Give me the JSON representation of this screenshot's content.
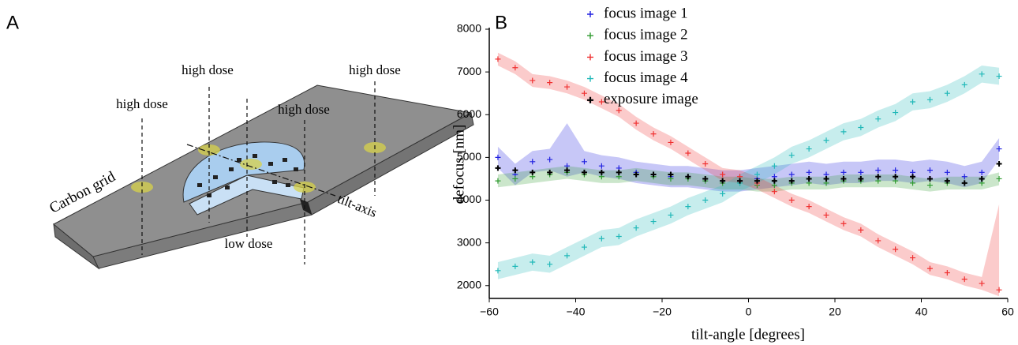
{
  "panels": {
    "a": "A",
    "b": "B"
  },
  "diagram": {
    "high_dose_labels": [
      "high dose",
      "high dose",
      "high dose",
      "high dose"
    ],
    "low_dose_label": "low dose",
    "carbon_label": "Carbon grid",
    "axis_label": "tilt-axis"
  },
  "chart_data": {
    "type": "scatter",
    "x_label": "tilt-angle [degrees]",
    "y_label": "defocus [nm]",
    "xlim": [
      -60,
      60
    ],
    "ylim": [
      1700,
      8000
    ],
    "xticks": [
      {
        "value": -60,
        "label": "−60"
      },
      {
        "value": -40,
        "label": "−40"
      },
      {
        "value": -20,
        "label": "−20"
      },
      0,
      20,
      40,
      60
    ],
    "yticks": [
      2000,
      3000,
      4000,
      5000,
      6000,
      7000,
      8000
    ],
    "legend": "top",
    "x": [
      -58,
      -54,
      -50,
      -46,
      -42,
      -38,
      -34,
      -30,
      -26,
      -22,
      -18,
      -14,
      -10,
      -6,
      -2,
      2,
      6,
      10,
      14,
      18,
      22,
      26,
      30,
      34,
      38,
      42,
      46,
      50,
      54,
      58
    ],
    "series": [
      {
        "name": "focus image 1",
        "color": "#2020e0",
        "values": [
          5000,
          4600,
          4900,
          4950,
          4800,
          4900,
          4800,
          4750,
          4650,
          4600,
          4550,
          4550,
          4500,
          4450,
          4450,
          4500,
          4550,
          4600,
          4650,
          4600,
          4650,
          4650,
          4700,
          4700,
          4650,
          4700,
          4650,
          4550,
          4650,
          5200
        ],
        "lower": [
          4750,
          4350,
          4650,
          4700,
          4550,
          4650,
          4550,
          4500,
          4400,
          4350,
          4300,
          4300,
          4250,
          4200,
          4200,
          4250,
          4300,
          4350,
          4400,
          4350,
          4400,
          4400,
          4450,
          4450,
          4400,
          4450,
          4400,
          4300,
          4400,
          4950
        ],
        "upper": [
          5250,
          4850,
          5150,
          5200,
          5800,
          5150,
          5050,
          5000,
          4900,
          4850,
          4800,
          4800,
          4750,
          4700,
          4700,
          4750,
          4800,
          4850,
          4900,
          4850,
          4900,
          4900,
          4950,
          4950,
          4900,
          4950,
          4900,
          4800,
          4900,
          5450
        ]
      },
      {
        "name": "focus image 2",
        "color": "#2e9a2e",
        "values": [
          4450,
          4500,
          4550,
          4600,
          4650,
          4600,
          4550,
          4550,
          4600,
          4550,
          4500,
          4500,
          4450,
          4400,
          4400,
          4350,
          4350,
          4400,
          4400,
          4400,
          4450,
          4450,
          4450,
          4450,
          4400,
          4350,
          4400,
          4400,
          4400,
          4500
        ],
        "lower": [
          4300,
          4350,
          4400,
          4450,
          4500,
          4450,
          4400,
          4400,
          4450,
          4400,
          4350,
          4350,
          4300,
          4250,
          4250,
          4200,
          4200,
          4250,
          4250,
          4250,
          4300,
          4300,
          4300,
          4300,
          4250,
          4200,
          4250,
          4250,
          4250,
          4350
        ],
        "upper": [
          4600,
          4650,
          4700,
          4750,
          4800,
          4750,
          4700,
          4700,
          4750,
          4700,
          4650,
          4650,
          4600,
          4550,
          4550,
          4500,
          4500,
          4550,
          4550,
          4550,
          4600,
          4600,
          4600,
          4600,
          4550,
          4500,
          4550,
          4550,
          4550,
          4650
        ]
      },
      {
        "name": "focus image 3",
        "color": "#f03030",
        "values": [
          7300,
          7100,
          6800,
          6750,
          6650,
          6500,
          6300,
          6100,
          5800,
          5550,
          5350,
          5100,
          4850,
          4600,
          4550,
          4400,
          4200,
          4000,
          3850,
          3650,
          3450,
          3300,
          3050,
          2850,
          2650,
          2400,
          2300,
          2150,
          2050,
          1900
        ],
        "lower": [
          7150,
          6950,
          6650,
          6600,
          6500,
          6350,
          6150,
          5950,
          5650,
          5400,
          5200,
          4950,
          4700,
          4450,
          4400,
          4250,
          4050,
          3850,
          3700,
          3500,
          3300,
          3150,
          2900,
          2700,
          2500,
          2250,
          2150,
          2000,
          1900,
          1750
        ],
        "upper": [
          7450,
          7250,
          6950,
          6900,
          6800,
          6650,
          6450,
          6250,
          5950,
          5700,
          5500,
          5250,
          5000,
          4750,
          4700,
          4550,
          4350,
          4150,
          4000,
          3800,
          3600,
          3450,
          3200,
          3000,
          2800,
          2550,
          2450,
          2300,
          2200,
          3900
        ]
      },
      {
        "name": "focus image 4",
        "color": "#20b8b8",
        "values": [
          2350,
          2450,
          2550,
          2500,
          2700,
          2900,
          3100,
          3150,
          3350,
          3500,
          3650,
          3850,
          4000,
          4150,
          4400,
          4600,
          4800,
          5050,
          5200,
          5400,
          5600,
          5700,
          5900,
          6050,
          6300,
          6350,
          6500,
          6700,
          6950,
          6900
        ],
        "lower": [
          2150,
          2250,
          2350,
          2300,
          2500,
          2700,
          2900,
          2950,
          3150,
          3300,
          3450,
          3650,
          3800,
          3950,
          4200,
          4400,
          4600,
          4850,
          5000,
          5200,
          5400,
          5500,
          5700,
          5850,
          6100,
          6150,
          6300,
          6500,
          6750,
          6700
        ],
        "upper": [
          2550,
          2650,
          2750,
          2700,
          2900,
          3100,
          3300,
          3350,
          3550,
          3700,
          3850,
          4050,
          4200,
          4350,
          4600,
          4800,
          5000,
          5250,
          5400,
          5600,
          5800,
          5900,
          6100,
          6250,
          6500,
          6550,
          6700,
          6900,
          7150,
          7100
        ]
      },
      {
        "name": "exposure image",
        "color": "#000000",
        "values": [
          4750,
          4700,
          4650,
          4650,
          4700,
          4650,
          4650,
          4650,
          4600,
          4600,
          4600,
          4550,
          4500,
          4450,
          4450,
          4450,
          4450,
          4450,
          4500,
          4500,
          4500,
          4500,
          4550,
          4550,
          4550,
          4500,
          4450,
          4400,
          4500,
          4850
        ]
      }
    ]
  }
}
